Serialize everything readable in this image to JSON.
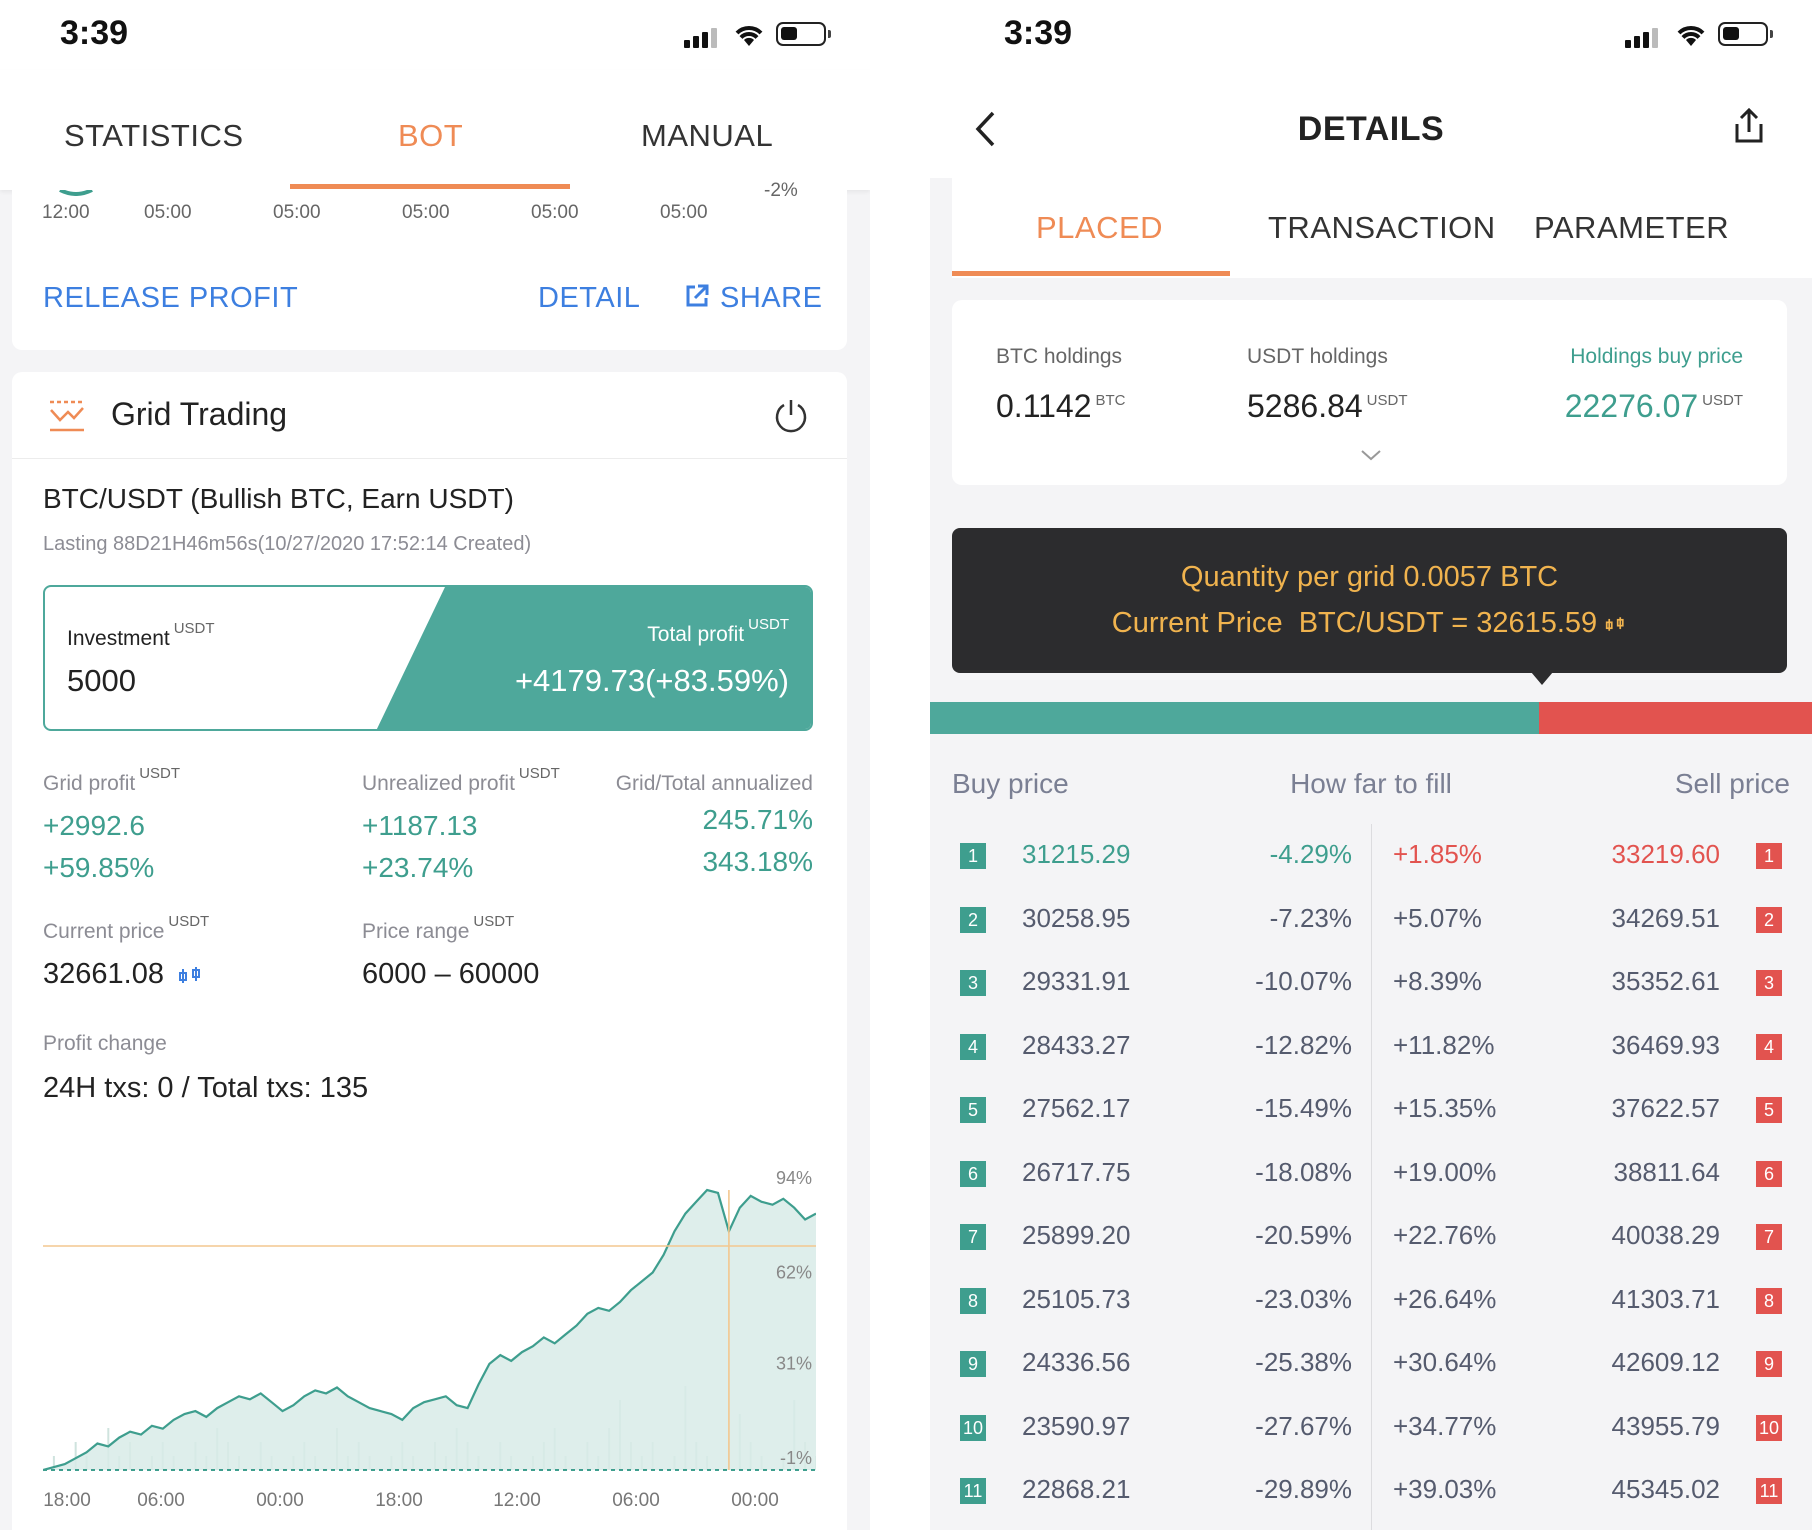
{
  "left": {
    "status": {
      "time": "3:39"
    },
    "tabs": [
      {
        "label": "STATISTICS",
        "active": false
      },
      {
        "label": "BOT",
        "active": true
      },
      {
        "label": "MANUAL",
        "active": false
      }
    ],
    "top_card": {
      "partial_axis_label": "-2%",
      "x_ticks": [
        "12:00",
        "05:00",
        "05:00",
        "05:00",
        "05:00",
        "05:00"
      ],
      "release_profit": "RELEASE PROFIT",
      "detail": "DETAIL",
      "share": "SHARE"
    },
    "grid": {
      "title": "Grid Trading",
      "pair": "BTC/USDT (Bullish BTC, Earn USDT)",
      "lasting": "Lasting 88D21H46m56s(10/27/2020 17:52:14 Created)",
      "investment_label": "Investment",
      "investment_unit": "USDT",
      "investment_value": "5000",
      "total_profit_label": "Total profit",
      "total_profit_unit": "USDT",
      "total_profit_value": "+4179.73(+83.59%)",
      "grid_profit_label": "Grid profit",
      "grid_profit_unit": "USDT",
      "grid_profit_value": "+2992.6",
      "grid_profit_pct": "+59.85%",
      "unrealized_label": "Unrealized profit",
      "unrealized_unit": "USDT",
      "unrealized_value": "+1187.13",
      "unrealized_pct": "+23.74%",
      "annualized_label": "Grid/Total annualized",
      "annualized_grid": "245.71%",
      "annualized_total": "343.18%",
      "current_price_label": "Current price",
      "current_price_unit": "USDT",
      "current_price_value": "32661.08",
      "price_range_label": "Price range",
      "price_range_unit": "USDT",
      "price_range_value": "6000 – 60000",
      "profit_change_label": "Profit change",
      "txs": "24H txs: 0 / Total txs: 135"
    },
    "chart_data": {
      "type": "area",
      "x_ticks": [
        "18:00",
        "06:00",
        "00:00",
        "18:00",
        "12:00",
        "06:00",
        "00:00"
      ],
      "y_ticks": [
        "94%",
        "62%",
        "31%",
        "-1%"
      ],
      "ylim": [
        -1,
        94
      ],
      "crosshair_pct": 75,
      "series": [
        {
          "values": [
            -1,
            0,
            1,
            3,
            5,
            8,
            7,
            10,
            12,
            11,
            14,
            13,
            16,
            18,
            19,
            17,
            20,
            22,
            24,
            23,
            25,
            22,
            19,
            21,
            24,
            26,
            25,
            27,
            24,
            22,
            20,
            19,
            18,
            16,
            20,
            22,
            23,
            24,
            21,
            20,
            28,
            35,
            38,
            36,
            39,
            41,
            44,
            42,
            45,
            48,
            52,
            54,
            53,
            56,
            60,
            63,
            66,
            72,
            80,
            86,
            90,
            94,
            93,
            80,
            88,
            92,
            90,
            89,
            91,
            88,
            84,
            86
          ]
        }
      ],
      "bars": [
        0,
        1,
        0,
        2,
        1,
        0,
        3,
        1,
        2,
        0,
        1,
        2,
        1,
        0,
        2,
        1,
        3,
        2,
        1,
        0,
        2,
        1,
        0,
        1,
        2,
        1,
        0,
        3,
        1,
        2,
        1,
        0,
        1,
        2,
        1,
        0,
        2,
        1,
        3,
        2,
        1,
        0,
        2,
        1,
        0,
        1,
        2,
        3,
        1,
        0,
        2,
        1,
        3,
        5,
        2,
        1,
        2,
        0,
        1,
        6,
        2,
        1,
        0,
        2,
        4,
        2,
        1,
        0,
        1,
        5,
        2,
        1
      ]
    }
  },
  "right": {
    "status": {
      "time": "3:39"
    },
    "title": "DETAILS",
    "tabs": [
      {
        "label": "PLACED",
        "active": true
      },
      {
        "label": "TRANSACTION",
        "active": false
      },
      {
        "label": "PARAMETER",
        "active": false
      }
    ],
    "holdings": {
      "btc_label": "BTC holdings",
      "btc_value": "0.1142",
      "btc_unit": "BTC",
      "usdt_label": "USDT holdings",
      "usdt_value": "5286.84",
      "usdt_unit": "USDT",
      "buy_price_label": "Holdings buy price",
      "buy_price_value": "22276.07",
      "buy_price_unit": "USDT"
    },
    "tooltip": {
      "qty_label": "Quantity per grid",
      "qty_value": "0.0057 BTC",
      "price_label": "Current Price",
      "price_value": "BTC/USDT = 32615.59"
    },
    "fill_bar": {
      "buy_fraction": 0.69
    },
    "table_headers": {
      "buy": "Buy price",
      "fill": "How far to fill",
      "sell": "Sell price"
    },
    "rows": [
      {
        "n": "1",
        "buy": "31215.29",
        "buy_pct": "-4.29%",
        "sell_pct": "+1.85%",
        "sell": "33219.60",
        "highlight": true
      },
      {
        "n": "2",
        "buy": "30258.95",
        "buy_pct": "-7.23%",
        "sell_pct": "+5.07%",
        "sell": "34269.51",
        "highlight": false
      },
      {
        "n": "3",
        "buy": "29331.91",
        "buy_pct": "-10.07%",
        "sell_pct": "+8.39%",
        "sell": "35352.61",
        "highlight": false
      },
      {
        "n": "4",
        "buy": "28433.27",
        "buy_pct": "-12.82%",
        "sell_pct": "+11.82%",
        "sell": "36469.93",
        "highlight": false
      },
      {
        "n": "5",
        "buy": "27562.17",
        "buy_pct": "-15.49%",
        "sell_pct": "+15.35%",
        "sell": "37622.57",
        "highlight": false
      },
      {
        "n": "6",
        "buy": "26717.75",
        "buy_pct": "-18.08%",
        "sell_pct": "+19.00%",
        "sell": "38811.64",
        "highlight": false
      },
      {
        "n": "7",
        "buy": "25899.20",
        "buy_pct": "-20.59%",
        "sell_pct": "+22.76%",
        "sell": "40038.29",
        "highlight": false
      },
      {
        "n": "8",
        "buy": "25105.73",
        "buy_pct": "-23.03%",
        "sell_pct": "+26.64%",
        "sell": "41303.71",
        "highlight": false
      },
      {
        "n": "9",
        "buy": "24336.56",
        "buy_pct": "-25.38%",
        "sell_pct": "+30.64%",
        "sell": "42609.12",
        "highlight": false
      },
      {
        "n": "10",
        "buy": "23590.97",
        "buy_pct": "-27.67%",
        "sell_pct": "+34.77%",
        "sell": "43955.79",
        "highlight": false
      },
      {
        "n": "11",
        "buy": "22868.21",
        "buy_pct": "-29.89%",
        "sell_pct": "+39.03%",
        "sell": "45345.02",
        "highlight": false
      }
    ]
  },
  "colors": {
    "accent": "#ef8b55",
    "green": "#3e9e8e",
    "red": "#e2534f",
    "link": "#3d7fe0",
    "tooltip_bg": "#2c2c2e",
    "tooltip_text": "#f0b34e"
  }
}
